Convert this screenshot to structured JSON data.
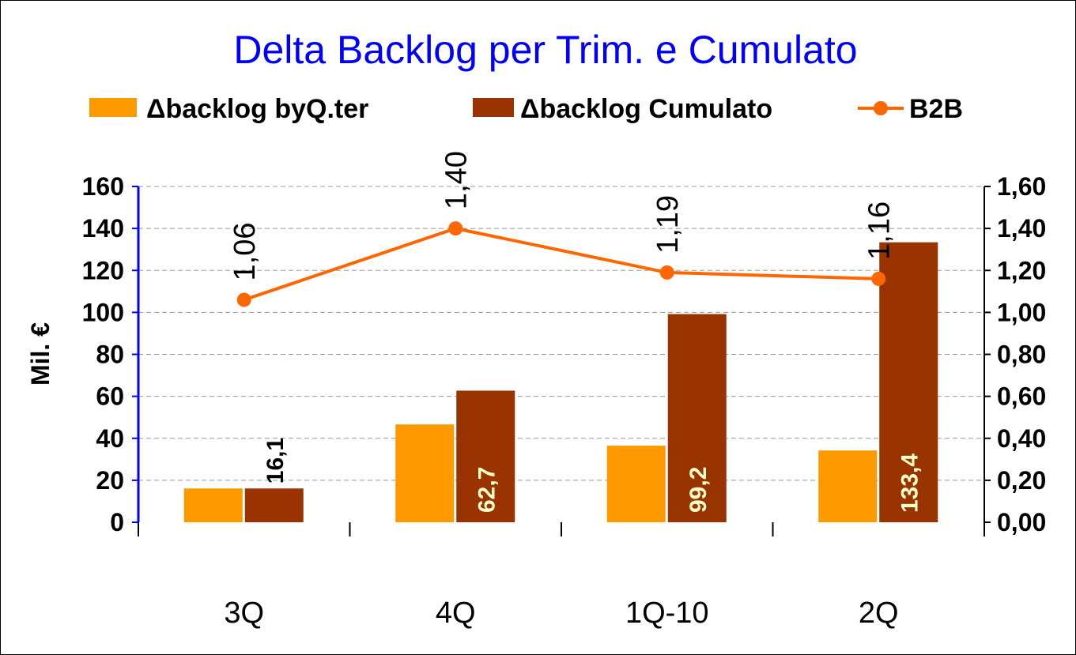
{
  "chart_data": {
    "type": "bar",
    "title": "Delta Backlog per Trim. e Cumulato",
    "categories": [
      "3Q",
      "4Q",
      "1Q-10",
      "2Q"
    ],
    "ylabel": "Mil. €",
    "ylim": [
      0,
      160
    ],
    "yticks": [
      0,
      20,
      40,
      60,
      80,
      100,
      120,
      140,
      160
    ],
    "y2lim": [
      0,
      1.6
    ],
    "y2ticks": [
      {
        "value": 0,
        "label": "0,00"
      },
      {
        "value": 0.2,
        "label": "0,20"
      },
      {
        "value": 0.4,
        "label": "0,40"
      },
      {
        "value": 0.6,
        "label": "0,60"
      },
      {
        "value": 0.8,
        "label": "0,80"
      },
      {
        "value": 1.0,
        "label": "1,00"
      },
      {
        "value": 1.2,
        "label": "1,20"
      },
      {
        "value": 1.4,
        "label": "1,40"
      },
      {
        "value": 1.6,
        "label": "1,60"
      }
    ],
    "grid": true,
    "series": [
      {
        "name": "Δbacklog byQ.ter",
        "type": "bar",
        "color": "#ff9900",
        "values": [
          16.1,
          46.6,
          36.5,
          34.2
        ]
      },
      {
        "name": "Δbacklog Cumulato",
        "type": "bar",
        "color": "#993300",
        "values": [
          16.1,
          62.7,
          99.2,
          133.4
        ],
        "value_labels": [
          "16,1",
          "62,7",
          "99,2",
          "133,4"
        ]
      },
      {
        "name": "B2B",
        "type": "line",
        "axis": "y2",
        "color": "#ff6600",
        "values": [
          1.06,
          1.4,
          1.19,
          1.16
        ],
        "value_labels": [
          "1,06",
          "1,40",
          "1,19",
          "1,16"
        ]
      }
    ]
  }
}
